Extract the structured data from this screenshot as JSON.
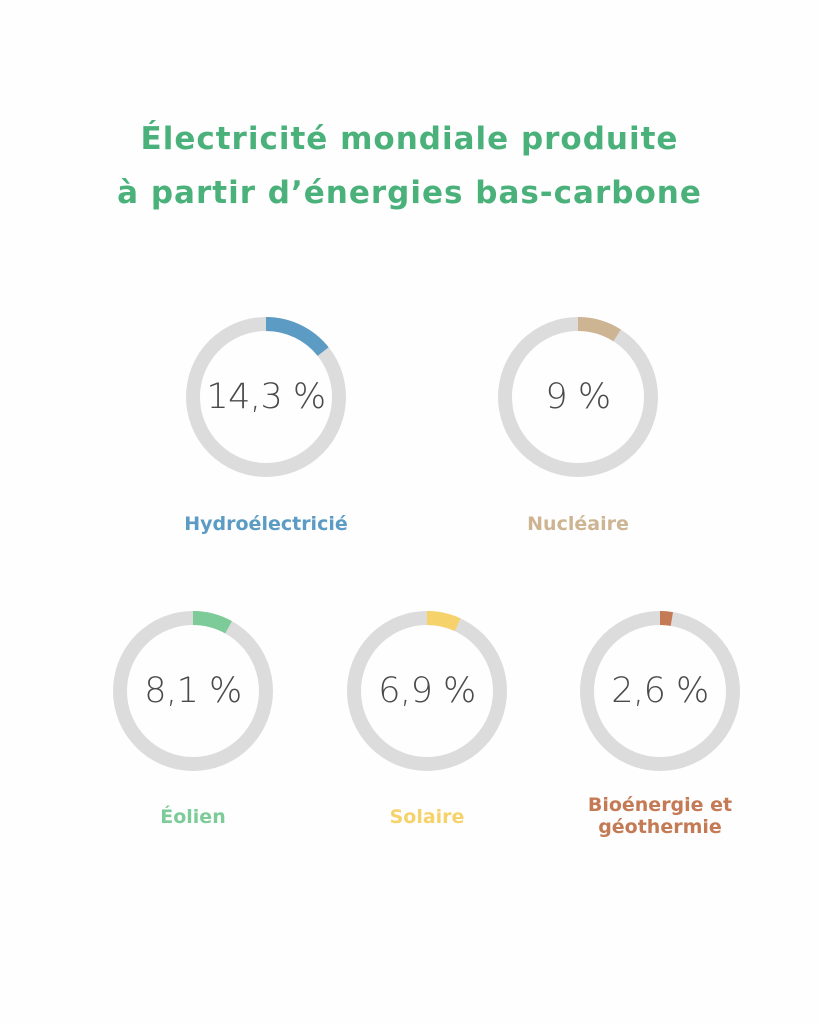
{
  "chart_data": {
    "type": "pie",
    "title": [
      "Électricité mondiale produite",
      "à partir d’énergies bas-carbone"
    ],
    "title_color": "#4bb17b",
    "track_color": "#dcdcdc",
    "series": [
      {
        "name": "Hydroélectricié",
        "value": 14.3,
        "display": "14,3 %",
        "color": "#5b9bc4"
      },
      {
        "name": "Nucléaire",
        "value": 9,
        "display": "9 %",
        "color": "#cdb493"
      },
      {
        "name": "Éolien",
        "value": 8.1,
        "display": "8,1 %",
        "color": "#7ccb98"
      },
      {
        "name": "Solaire",
        "value": 6.9,
        "display": "6,9 %",
        "color": "#f6d26a"
      },
      {
        "name": "Bioénergie et géothermie",
        "value": 2.6,
        "display": "2,6 %",
        "color": "#c47a55"
      }
    ]
  }
}
